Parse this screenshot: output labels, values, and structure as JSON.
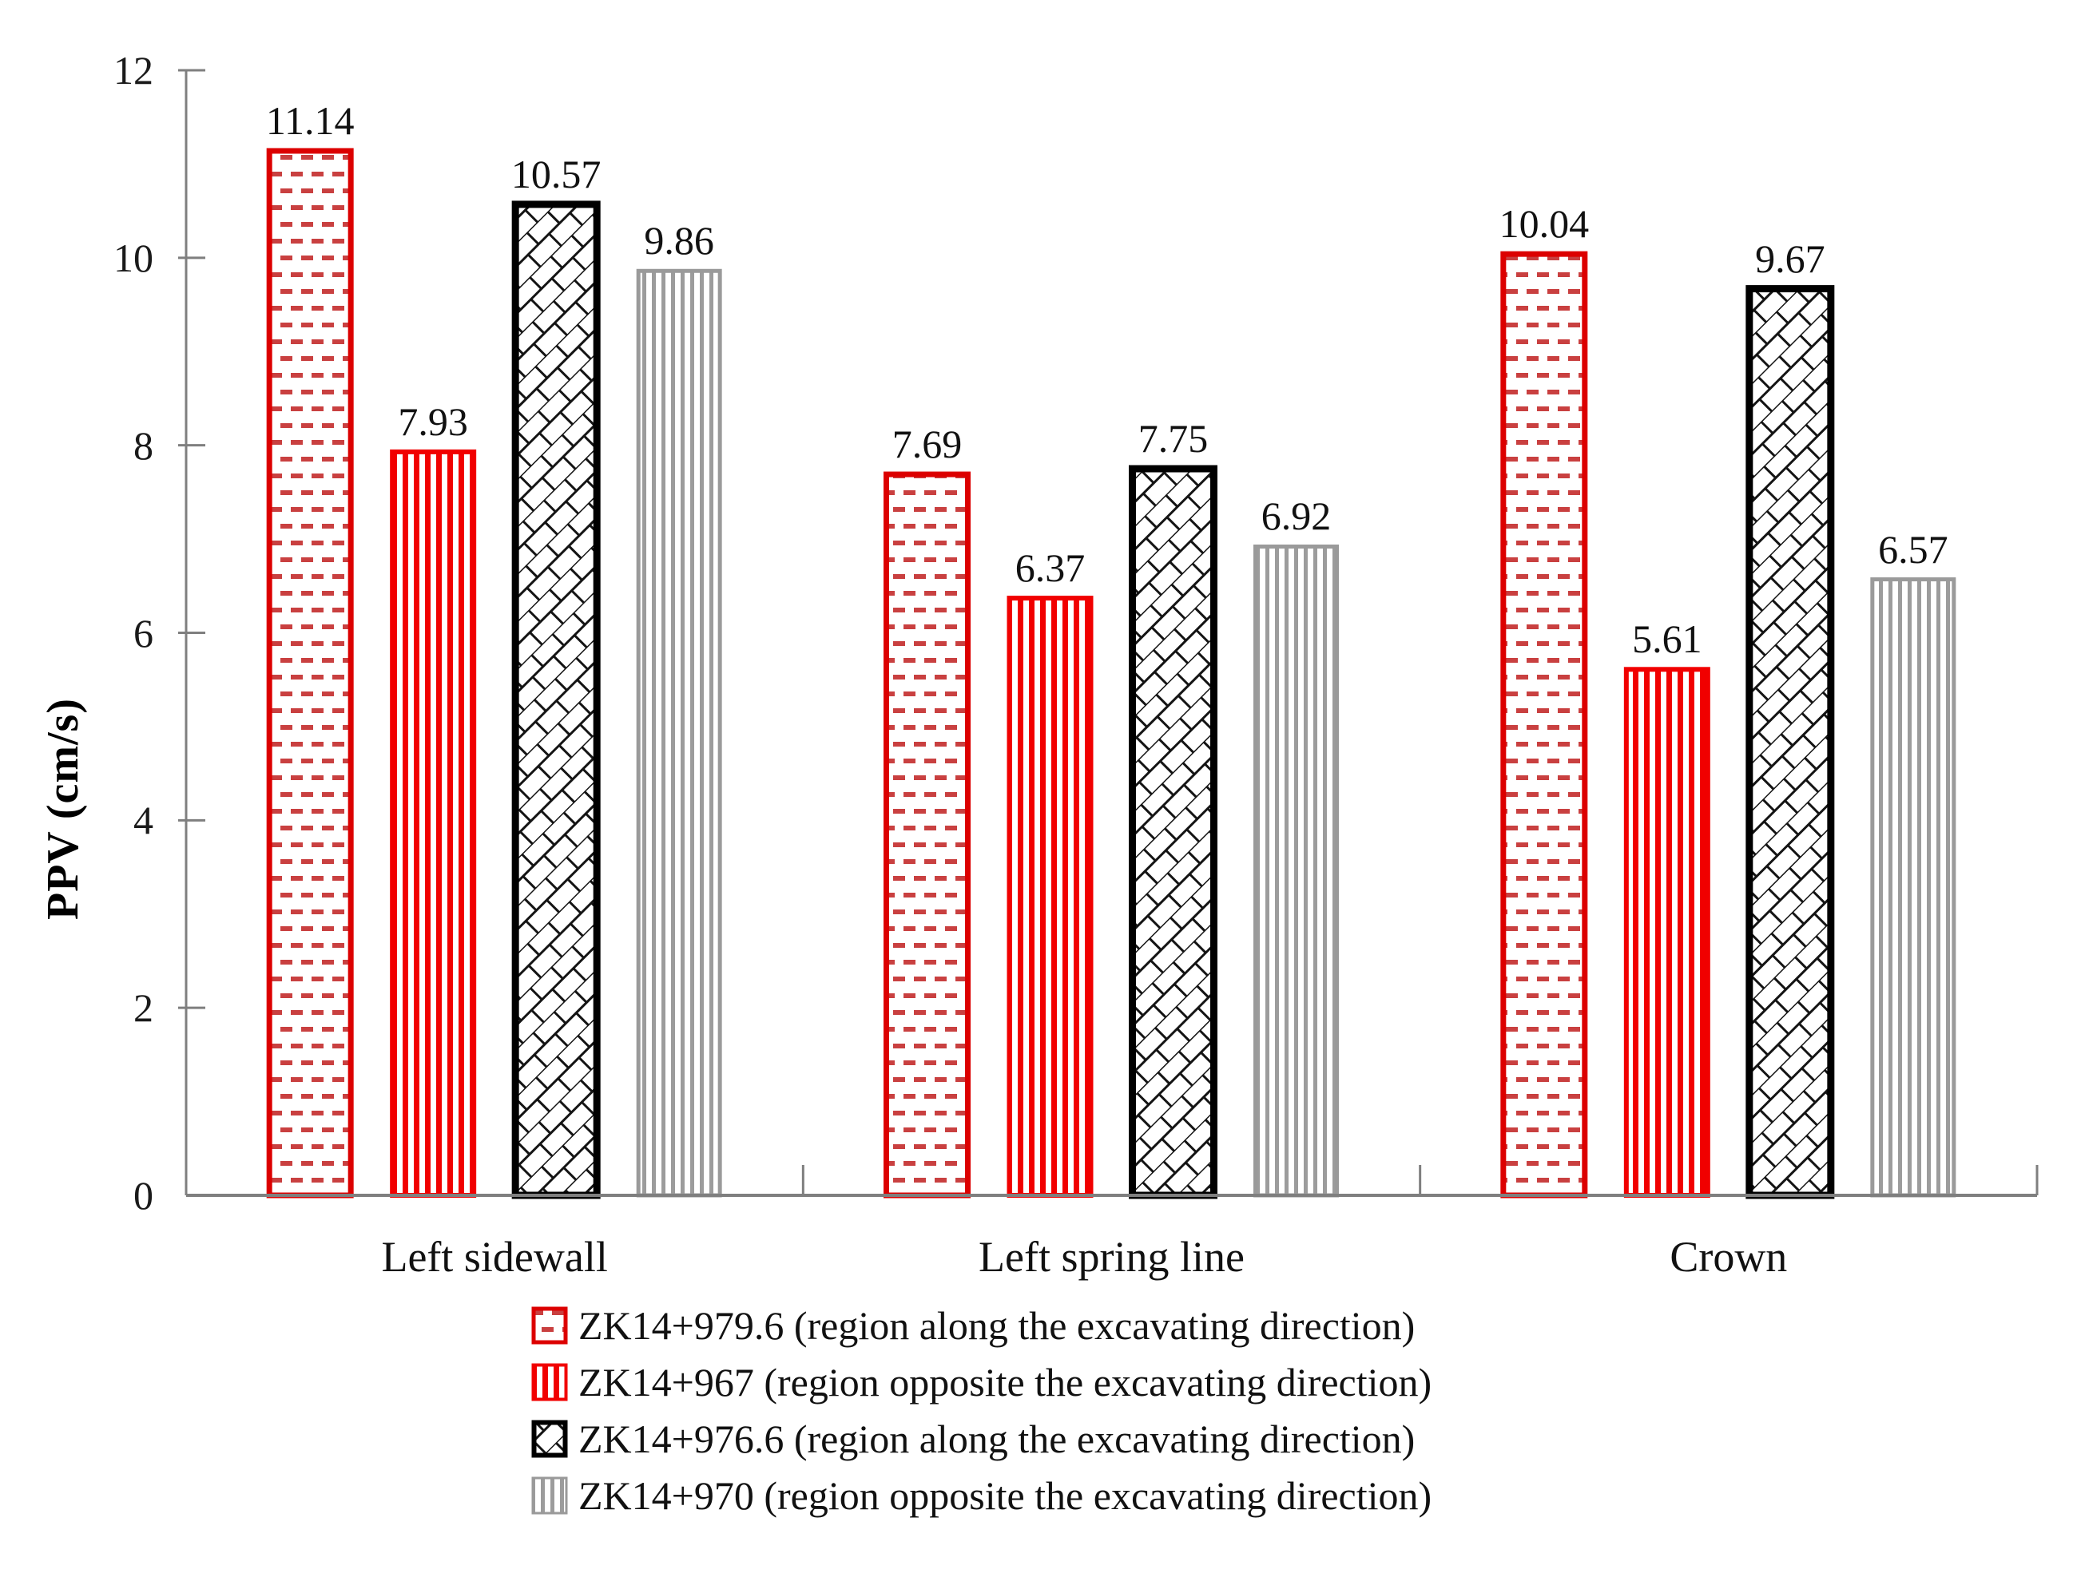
{
  "figure": {
    "background": "#ffffff",
    "axis_color": "#7f7f7f",
    "text_color": "#111111"
  },
  "chart_data": {
    "type": "bar",
    "title": "",
    "xlabel": "",
    "ylabel": "PPV (cm/s)",
    "ylim": [
      0,
      12
    ],
    "ytick_step": 2,
    "yticks": [
      0,
      2,
      4,
      6,
      8,
      10,
      12
    ],
    "grid": false,
    "value_labels": true,
    "legend_position": "bottom",
    "categories": [
      "Left sidewall",
      "Left spring line",
      "Crown"
    ],
    "series": [
      {
        "name": "ZK14+979.6 (region along the excavating direction)",
        "values": [
          11.14,
          7.69,
          10.04
        ],
        "pattern": "red-horizontal-dashes",
        "border_color": "#dc0000",
        "pattern_color": "#c94040"
      },
      {
        "name": "ZK14+967 (region opposite the excavating direction)",
        "values": [
          7.93,
          6.37,
          5.61
        ],
        "pattern": "red-vertical-stripes",
        "border_color": "#f10000",
        "pattern_color": "#f10000"
      },
      {
        "name": "ZK14+976.6 (region along the excavating direction)",
        "values": [
          10.57,
          7.75,
          9.67
        ],
        "pattern": "black-diagonal-brick",
        "border_color": "#000000",
        "pattern_color": "#141414"
      },
      {
        "name": "ZK14+970 (region opposite the excavating direction)",
        "values": [
          9.86,
          6.92,
          6.57
        ],
        "pattern": "gray-vertical-stripes",
        "border_color": "#9a9a9a",
        "pattern_color": "#9c9c9c"
      }
    ]
  }
}
